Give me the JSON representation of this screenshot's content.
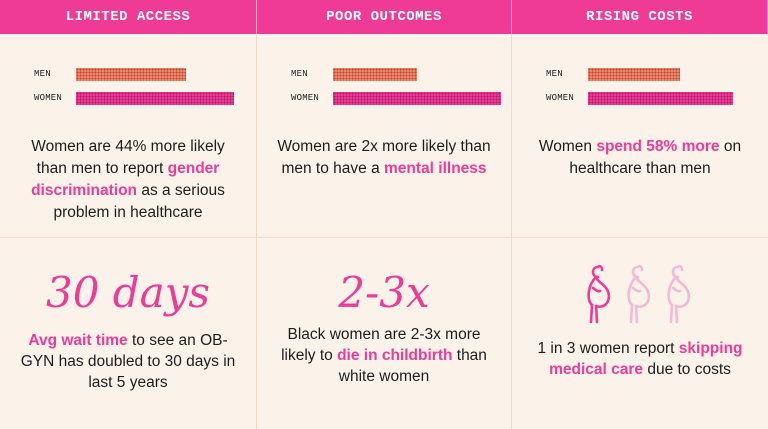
{
  "headers": [
    "LIMITED ACCESS",
    "POOR OUTCOMES",
    "RISING COSTS"
  ],
  "legend": {
    "men": "MEN",
    "women": "WOMEN"
  },
  "colors": {
    "pink": "#ef3b96",
    "coral": "#ef8a6f",
    "background": "#fbf3ea"
  },
  "top": [
    {
      "men_share": 0.694,
      "women_share": 1.0,
      "text": {
        "a": "Women are 44% more likely than men to report ",
        "b": "gender discrimination",
        "c": " as a serious problem in healthcare"
      }
    },
    {
      "men_share": 0.5,
      "women_share": 1.0,
      "text": {
        "a": "Women are 2x more likely than men to have a ",
        "b": "mental illness",
        "c": ""
      }
    },
    {
      "men_share": 0.633,
      "women_share": 1.0,
      "text": {
        "a": "Women ",
        "b": "spend 58% more",
        "c": " on healthcare than men"
      }
    }
  ],
  "bottom": [
    {
      "big": "30 days",
      "text": {
        "a": "",
        "b": "Avg wait time",
        "c": " to see an OB-GYN has doubled to 30 days in last 5 years"
      }
    },
    {
      "big": "2-3x",
      "text": {
        "a": "Black women are 2-3x more likely to ",
        "b": "die in childbirth",
        "c": " than white women"
      }
    },
    {
      "icon_names": [
        "pregnant-woman-icon",
        "pregnant-woman-icon",
        "pregnant-woman-icon"
      ],
      "highlighted_count": 1,
      "total_count": 3,
      "text": {
        "a": "1 in 3 women report ",
        "b": "skipping medical care",
        "c": " due to costs"
      }
    }
  ]
}
